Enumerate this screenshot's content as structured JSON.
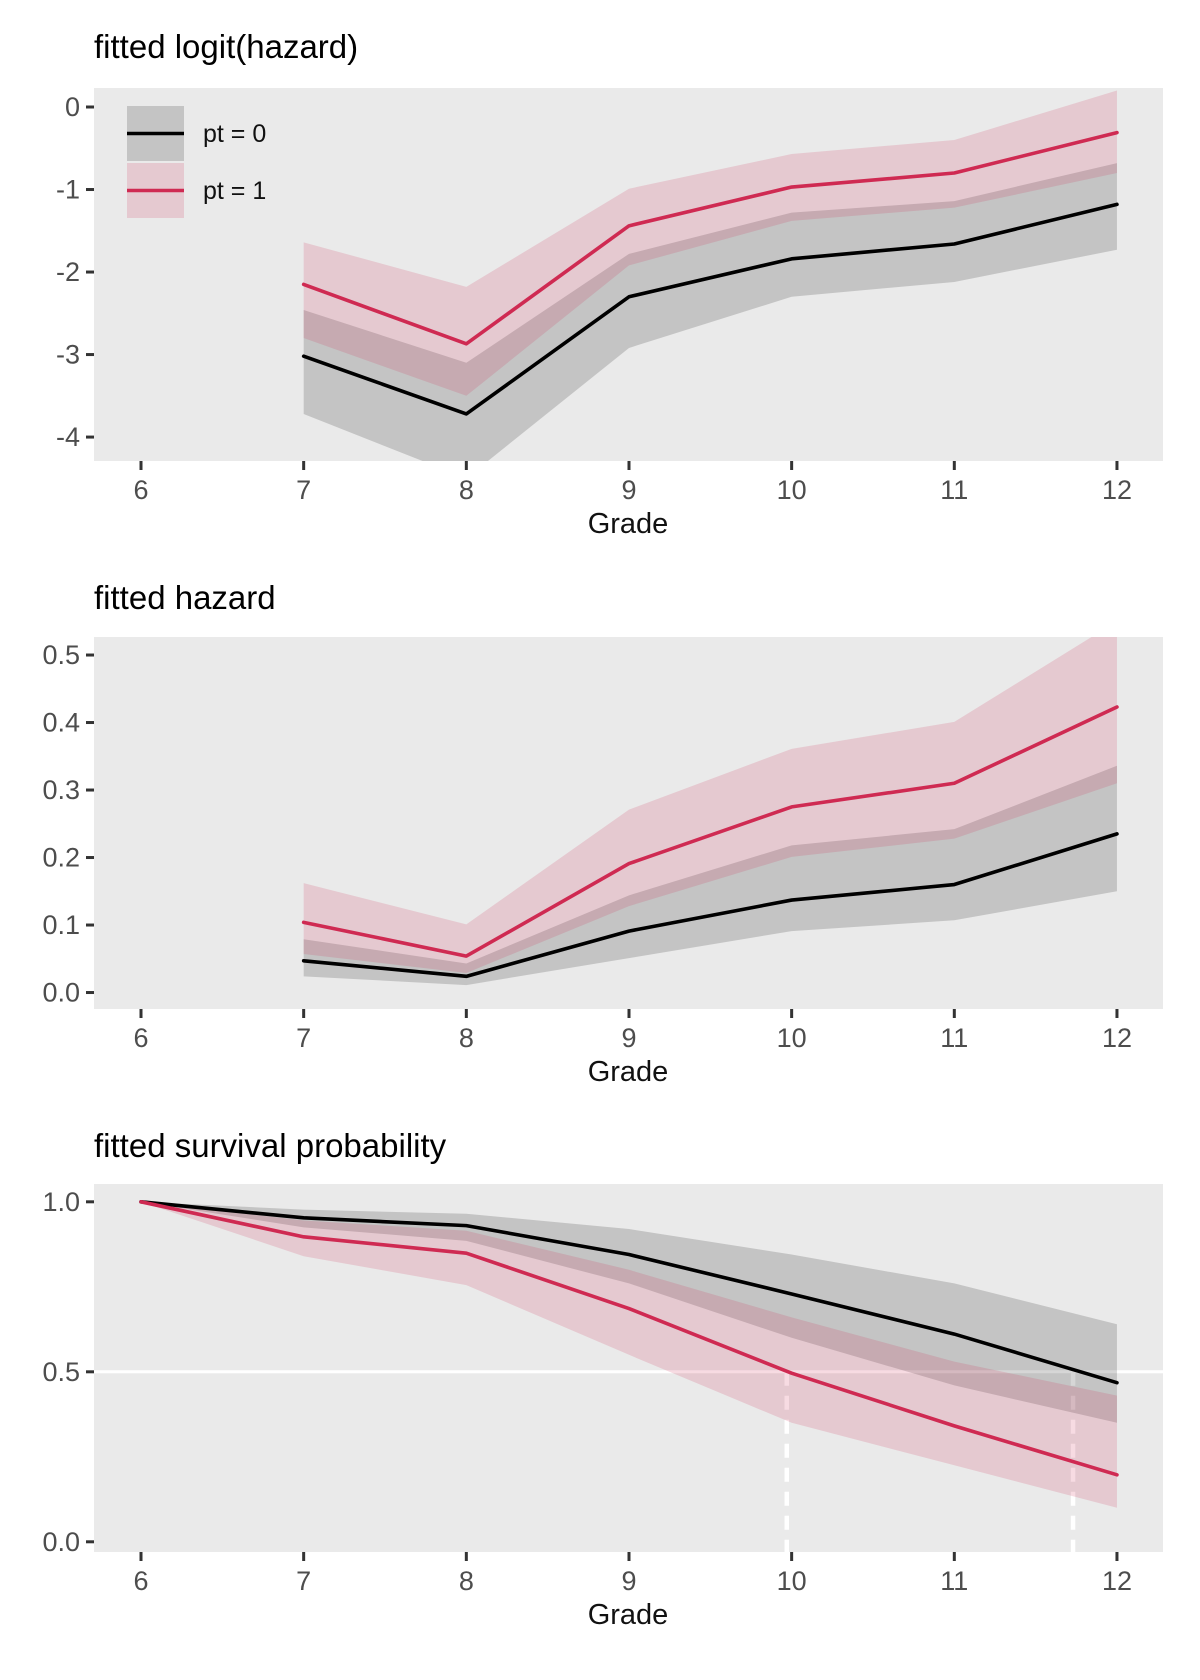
{
  "colors": {
    "panel_bg": "#EAEAEA",
    "black_line": "#000000",
    "red_line": "#CF2A52",
    "gray_band": "rgba(0,0,0,0.16)",
    "pink_band": "rgba(207,42,82,0.17)",
    "axis_text": "#4D4D4D",
    "tick_mark": "#333333",
    "reference_white": "#FFFFFF"
  },
  "legend": {
    "items": [
      {
        "label": "pt = 0",
        "swatch": "gray-band-with-black-line"
      },
      {
        "label": "pt = 1",
        "swatch": "pink-band-with-red-line"
      }
    ]
  },
  "chart_data": [
    {
      "type": "line",
      "title": "fitted logit(hazard)",
      "xlabel": "Grade",
      "x_ticks": [
        6,
        7,
        8,
        9,
        10,
        11,
        12
      ],
      "y_ticks": [
        {
          "v": 0,
          "label": "0"
        },
        {
          "v": -1,
          "label": "-1"
        },
        {
          "v": -2,
          "label": "-2"
        },
        {
          "v": -3,
          "label": "-3"
        },
        {
          "v": -4,
          "label": "-4"
        }
      ],
      "xlim": [
        5.711,
        12.283
      ],
      "ylim": [
        -4.29,
        0.2303
      ],
      "grid": false,
      "x": [
        7,
        8,
        9,
        10,
        11,
        12
      ],
      "series": [
        {
          "name": "pt = 0",
          "color_role": "black",
          "values": [
            -3.02,
            -3.72,
            -2.3,
            -1.84,
            -1.66,
            -1.18
          ],
          "lower": [
            -3.72,
            -4.5,
            -2.92,
            -2.3,
            -2.12,
            -1.73
          ],
          "upper": [
            -2.46,
            -3.1,
            -1.78,
            -1.28,
            -1.14,
            -0.68
          ]
        },
        {
          "name": "pt = 1",
          "color_role": "red",
          "values": [
            -2.15,
            -2.87,
            -1.44,
            -0.97,
            -0.8,
            -0.31
          ],
          "lower": [
            -2.8,
            -3.5,
            -1.92,
            -1.38,
            -1.22,
            -0.8
          ],
          "upper": [
            -1.64,
            -2.18,
            -0.99,
            -0.57,
            -0.4,
            0.2
          ]
        }
      ]
    },
    {
      "type": "line",
      "title": "fitted hazard",
      "xlabel": "Grade",
      "x_ticks": [
        6,
        7,
        8,
        9,
        10,
        11,
        12
      ],
      "y_ticks": [
        {
          "v": 0.5,
          "label": "0.5"
        },
        {
          "v": 0.4,
          "label": "0.4"
        },
        {
          "v": 0.3,
          "label": "0.3"
        },
        {
          "v": 0.2,
          "label": "0.2"
        },
        {
          "v": 0.1,
          "label": "0.1"
        },
        {
          "v": 0.0,
          "label": "0.0"
        }
      ],
      "xlim": [
        5.711,
        12.283
      ],
      "ylim": [
        -0.0244,
        0.5267
      ],
      "grid": false,
      "x": [
        7,
        8,
        9,
        10,
        11,
        12
      ],
      "series": [
        {
          "name": "pt = 0",
          "color_role": "black",
          "values": [
            0.047,
            0.024,
            0.091,
            0.137,
            0.16,
            0.235
          ],
          "lower": [
            0.024,
            0.011,
            0.051,
            0.091,
            0.107,
            0.15
          ],
          "upper": [
            0.079,
            0.043,
            0.144,
            0.218,
            0.242,
            0.336
          ]
        },
        {
          "name": "pt = 1",
          "color_role": "red",
          "values": [
            0.104,
            0.054,
            0.191,
            0.275,
            0.31,
            0.423
          ],
          "lower": [
            0.057,
            0.029,
            0.128,
            0.201,
            0.228,
            0.31
          ],
          "upper": [
            0.162,
            0.101,
            0.271,
            0.361,
            0.401,
            0.55
          ]
        }
      ]
    },
    {
      "type": "line",
      "title": "fitted survival probability",
      "xlabel": "Grade",
      "x_ticks": [
        6,
        7,
        8,
        9,
        10,
        11,
        12
      ],
      "y_ticks": [
        {
          "v": 1.0,
          "label": "1.0"
        },
        {
          "v": 0.5,
          "label": "0.5"
        },
        {
          "v": 0.0,
          "label": "0.0"
        }
      ],
      "xlim": [
        5.711,
        12.283
      ],
      "ylim": [
        -0.03,
        1.0524
      ],
      "grid": false,
      "x": [
        6,
        7,
        8,
        9,
        10,
        11,
        12
      ],
      "series": [
        {
          "name": "pt = 0",
          "color_role": "black",
          "values": [
            1.0,
            0.953,
            0.93,
            0.845,
            0.729,
            0.611,
            0.468
          ],
          "lower": [
            1.0,
            0.925,
            0.885,
            0.76,
            0.6,
            0.46,
            0.35
          ],
          "upper": [
            1.0,
            0.977,
            0.965,
            0.92,
            0.845,
            0.76,
            0.64
          ]
        },
        {
          "name": "pt = 1",
          "color_role": "red",
          "values": [
            1.0,
            0.897,
            0.849,
            0.686,
            0.496,
            0.341,
            0.197
          ],
          "lower": [
            1.0,
            0.84,
            0.755,
            0.55,
            0.35,
            0.225,
            0.1
          ],
          "upper": [
            1.0,
            0.945,
            0.915,
            0.8,
            0.66,
            0.53,
            0.43
          ]
        }
      ],
      "reference_lines": {
        "hline_y": 0.5,
        "median_vlines_x": [
          9.97,
          11.73
        ]
      }
    }
  ]
}
